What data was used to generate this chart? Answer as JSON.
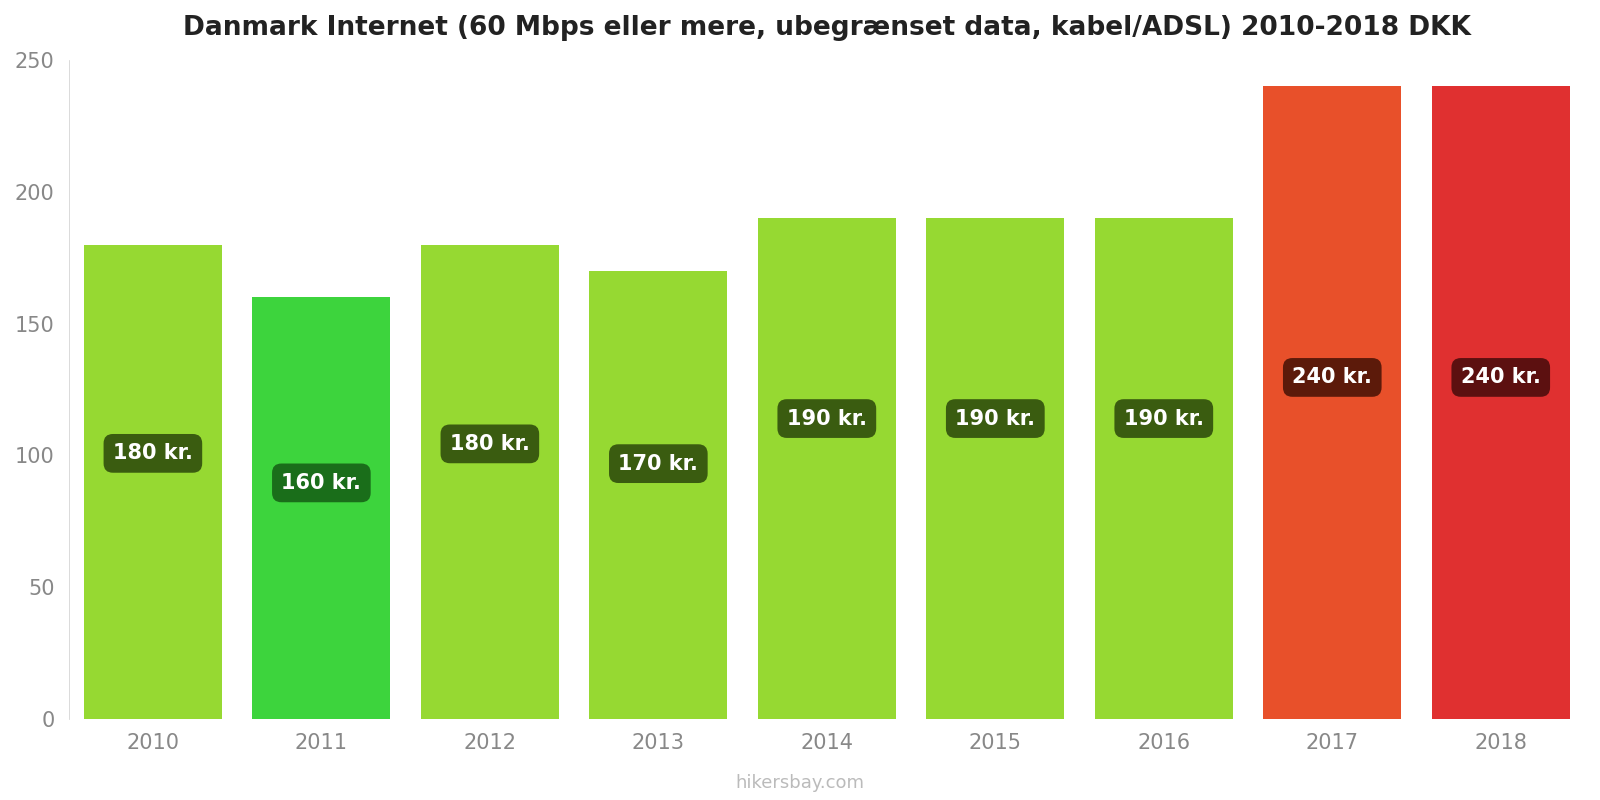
{
  "years": [
    2010,
    2011,
    2012,
    2013,
    2014,
    2015,
    2016,
    2017,
    2018
  ],
  "values": [
    180,
    160,
    180,
    170,
    190,
    190,
    190,
    240,
    240
  ],
  "bar_colors": [
    "#96d932",
    "#3dd43d",
    "#96d932",
    "#96d932",
    "#96d932",
    "#96d932",
    "#96d932",
    "#e8502a",
    "#e03030"
  ],
  "label_bg_colors": [
    "#3a5c10",
    "#1a6e1a",
    "#3a5c10",
    "#3a5c10",
    "#3a5c10",
    "#3a5c10",
    "#3a5c10",
    "#5c1a0a",
    "#5c1010"
  ],
  "labels": [
    "180 kr.",
    "160 kr.",
    "180 kr.",
    "170 kr.",
    "190 kr.",
    "190 kr.",
    "190 kr.",
    "240 kr.",
    "240 kr."
  ],
  "title": "Danmark Internet (60 Mbps eller mere, ubegrænset data, kabel/ADSL) 2010-2018 DKK",
  "ylim": [
    0,
    250
  ],
  "yticks": [
    0,
    50,
    100,
    150,
    200,
    250
  ],
  "watermark": "hikersbay.com",
  "bg_color": "#ffffff",
  "label_y_fractions": [
    0.56,
    0.56,
    0.58,
    0.57,
    0.6,
    0.6,
    0.6,
    0.54,
    0.54
  ]
}
